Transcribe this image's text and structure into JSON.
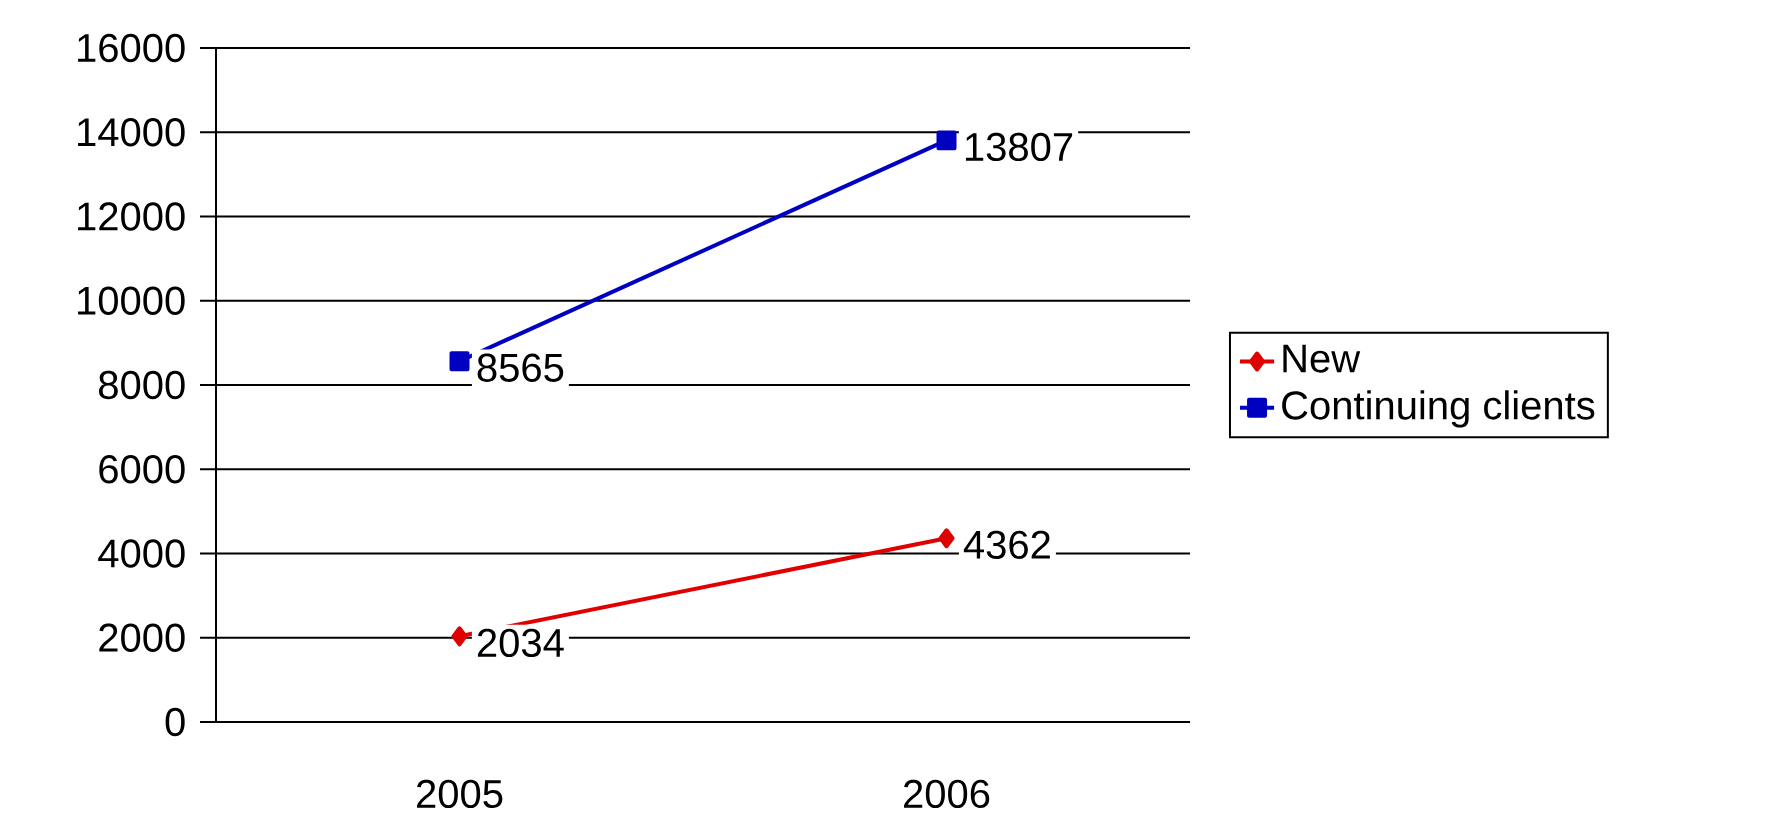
{
  "chart_data": {
    "type": "line",
    "categories": [
      "2005",
      "2006"
    ],
    "series": [
      {
        "name": "New",
        "color": "#e00000",
        "values": [
          2034,
          4362
        ],
        "marker": "diamond"
      },
      {
        "name": "Continuing clients",
        "color": "#0000c0",
        "values": [
          8565,
          13807
        ],
        "marker": "square"
      }
    ],
    "ylim": [
      0,
      16000
    ],
    "yticks": [
      0,
      2000,
      4000,
      6000,
      8000,
      10000,
      12000,
      14000,
      16000
    ],
    "grid": "y",
    "legend": "right",
    "data_labels": true
  }
}
